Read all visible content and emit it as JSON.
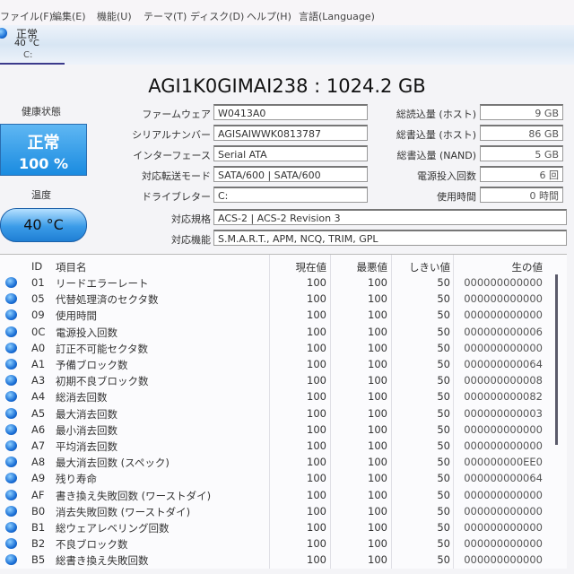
{
  "menu": [
    "ファイル(F)",
    "編集(E)",
    "機能(U)",
    "テーマ(T)",
    "ディスク(D)",
    "ヘルプ(H)",
    "言語(Language)"
  ],
  "disk_tab": {
    "status": "正常",
    "temp": "40 °C",
    "letter": "C:"
  },
  "title": "AGI1K0GIMAI238 : 1024.2 GB",
  "health": {
    "label": "健康状態",
    "status": "正常",
    "percent": "100 %",
    "color": "#1a8be0"
  },
  "temperature": {
    "label": "温度",
    "value": "40 °C"
  },
  "info_left": [
    {
      "label": "ファームウェア",
      "value": "W0413A0"
    },
    {
      "label": "シリアルナンバー",
      "value": "AGISAIWWK0813787"
    },
    {
      "label": "インターフェース",
      "value": "Serial ATA"
    },
    {
      "label": "対応転送モード",
      "value": "SATA/600 | SATA/600"
    },
    {
      "label": "ドライブレター",
      "value": "C:"
    }
  ],
  "info_right": [
    {
      "label": "総読込量 (ホスト)",
      "value": "9 GB"
    },
    {
      "label": "総書込量 (ホスト)",
      "value": "86 GB"
    },
    {
      "label": "総書込量 (NAND)",
      "value": "5 GB"
    },
    {
      "label": "電源投入回数",
      "value": "6 回"
    },
    {
      "label": "使用時間",
      "value": "0 時間"
    }
  ],
  "standard": {
    "label": "対応規格",
    "value": "ACS-2 | ACS-2 Revision 3"
  },
  "features": {
    "label": "対応機能",
    "value": "S.M.A.R.T., APM, NCQ, TRIM, GPL"
  },
  "table": {
    "headers": [
      "ID",
      "項目名",
      "現在値",
      "最悪値",
      "しきい値",
      "生の値"
    ],
    "rows": [
      [
        "01",
        "リードエラーレート",
        "100",
        "100",
        "50",
        "000000000000"
      ],
      [
        "05",
        "代替処理済のセクタ数",
        "100",
        "100",
        "50",
        "000000000000"
      ],
      [
        "09",
        "使用時間",
        "100",
        "100",
        "50",
        "000000000000"
      ],
      [
        "0C",
        "電源投入回数",
        "100",
        "100",
        "50",
        "000000000006"
      ],
      [
        "A0",
        "訂正不可能セクタ数",
        "100",
        "100",
        "50",
        "000000000000"
      ],
      [
        "A1",
        "予備ブロック数",
        "100",
        "100",
        "50",
        "000000000064"
      ],
      [
        "A3",
        "初期不良ブロック数",
        "100",
        "100",
        "50",
        "000000000008"
      ],
      [
        "A4",
        "総消去回数",
        "100",
        "100",
        "50",
        "000000000082"
      ],
      [
        "A5",
        "最大消去回数",
        "100",
        "100",
        "50",
        "000000000003"
      ],
      [
        "A6",
        "最小消去回数",
        "100",
        "100",
        "50",
        "000000000000"
      ],
      [
        "A7",
        "平均消去回数",
        "100",
        "100",
        "50",
        "000000000000"
      ],
      [
        "A8",
        "最大消去回数 (スペック)",
        "100",
        "100",
        "50",
        "000000000EE0"
      ],
      [
        "A9",
        "残り寿命",
        "100",
        "100",
        "50",
        "000000000064"
      ],
      [
        "AF",
        "書き換え失敗回数 (ワーストダイ)",
        "100",
        "100",
        "50",
        "000000000000"
      ],
      [
        "B0",
        "消去失敗回数 (ワーストダイ)",
        "100",
        "100",
        "50",
        "000000000000"
      ],
      [
        "B1",
        "総ウェアレベリング回数",
        "100",
        "100",
        "50",
        "000000000000"
      ],
      [
        "B2",
        "不良ブロック数",
        "100",
        "100",
        "50",
        "000000000000"
      ],
      [
        "B5",
        "総書き換え失敗回数",
        "100",
        "100",
        "50",
        "000000000000"
      ]
    ]
  }
}
